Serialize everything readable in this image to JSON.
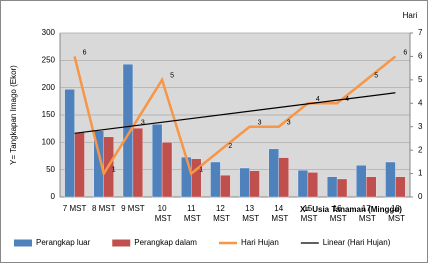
{
  "chart_data": {
    "type": "bar",
    "y_label": "Y= Tangkapan Imago (Ekor)",
    "x_label": "X= Usia Tanaman (Minggu)",
    "y2_label": "Hari",
    "categories": [
      "7 MST",
      "8 MST",
      "9 MST",
      "10 MST",
      "11 MST",
      "12 MST",
      "13 MST",
      "14 MST",
      "15 MST",
      "16 MST",
      "17 MST",
      "18 MST"
    ],
    "series": [
      {
        "name": "Perangkap luar",
        "color": "#4f81bd",
        "type": "bar",
        "values": [
          197,
          121,
          243,
          133,
          73,
          64,
          53,
          88,
          49,
          37,
          58,
          64
        ]
      },
      {
        "name": "Perangkap dalam",
        "color": "#c0504d",
        "type": "bar",
        "values": [
          118,
          110,
          126,
          100,
          70,
          40,
          48,
          72,
          45,
          33,
          37,
          37
        ]
      },
      {
        "name": "Hari Hujan",
        "color": "#f79646",
        "type": "line",
        "axis": "y2",
        "values": [
          6,
          1,
          3,
          5,
          1,
          2,
          3,
          3,
          4,
          4,
          5,
          6
        ]
      },
      {
        "name": "Linear (Hari Hujan)",
        "color": "#000000",
        "type": "line",
        "axis": "y2",
        "trendline": "linear"
      }
    ],
    "ylim": [
      0,
      300
    ],
    "yticks": [
      0,
      50,
      100,
      150,
      200,
      250,
      300
    ],
    "y2lim": [
      0,
      7
    ],
    "y2ticks": [
      0,
      1,
      2,
      3,
      4,
      5,
      6,
      7
    ],
    "grid": true,
    "legend": "bottom"
  }
}
